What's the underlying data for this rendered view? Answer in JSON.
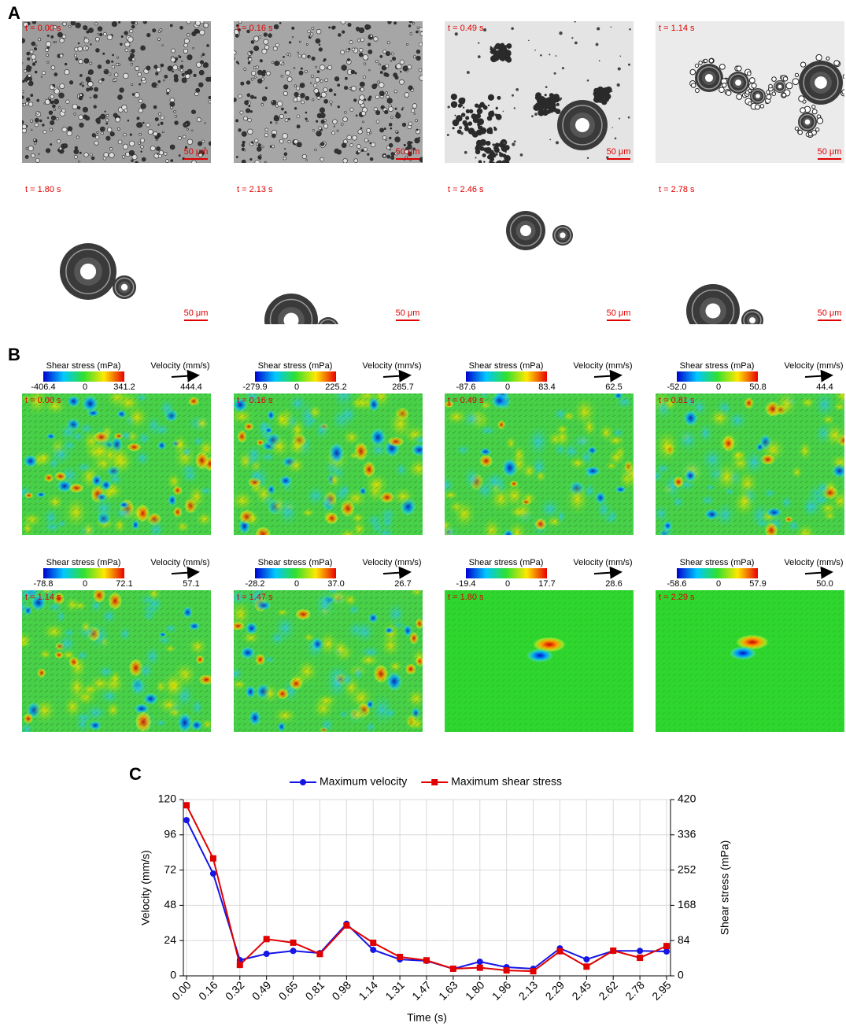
{
  "panel_a": {
    "label": "A",
    "scale_bar": "50 μm",
    "times": [
      "t = 0.00 s",
      "t = 0.16 s",
      "t = 0.49 s",
      "t = 1.14 s",
      "t = 1.80 s",
      "t = 2.13 s",
      "t = 2.46 s",
      "t = 2.78 s"
    ]
  },
  "panel_b": {
    "label": "B",
    "colorbar_title": "Shear stress (mPa)",
    "velocity_title": "Velocity (mm/s)",
    "maps": [
      {
        "time": "t = 0.00 s",
        "min": "-406.4",
        "mid": "0",
        "max": "341.2",
        "velocity": "444.4"
      },
      {
        "time": "t = 0.16 s",
        "min": "-279.9",
        "mid": "0",
        "max": "225.2",
        "velocity": "285.7"
      },
      {
        "time": "t = 0.49 s",
        "min": "-87.6",
        "mid": "0",
        "max": "83.4",
        "velocity": "62.5"
      },
      {
        "time": "t = 0.81 s",
        "min": "-52.0",
        "mid": "0",
        "max": "50.8",
        "velocity": "44.4"
      },
      {
        "time": "t = 1.14 s",
        "min": "-78.8",
        "mid": "0",
        "max": "72.1",
        "velocity": "57.1"
      },
      {
        "time": "t = 1.47 s",
        "min": "-28.2",
        "mid": "0",
        "max": "37.0",
        "velocity": "26.7"
      },
      {
        "time": "t = 1.80 s",
        "min": "-19.4",
        "mid": "0",
        "max": "17.7",
        "velocity": "28.6"
      },
      {
        "time": "t = 2.29 s",
        "min": "-58.6",
        "mid": "0",
        "max": "57.9",
        "velocity": "50.0"
      }
    ]
  },
  "panel_c_label": "C",
  "chart_data": {
    "type": "line",
    "x_label": "Time (s)",
    "y_label": "Velocity (mm/s)",
    "y2_label": "Shear stress (mPa)",
    "categories": [
      "0.00",
      "0.16",
      "0.32",
      "0.49",
      "0.65",
      "0.81",
      "0.98",
      "1.14",
      "1.31",
      "1.47",
      "1.63",
      "1.80",
      "1.96",
      "2.13",
      "2.29",
      "2.45",
      "2.62",
      "2.78",
      "2.95"
    ],
    "series": [
      {
        "name": "Maximum velocity",
        "color": "#1515e6",
        "marker": "circle",
        "values": [
          106,
          69.6,
          10.7,
          15,
          17,
          15.5,
          35.4,
          17.7,
          11.2,
          10.2,
          4.8,
          9.6,
          5.9,
          4.8,
          18.7,
          11.2,
          17,
          17,
          16.6
        ]
      },
      {
        "name": "Maximum shear stress",
        "color": "#e00000",
        "marker": "square",
        "axis": "y2",
        "values": [
          406.4,
          279.9,
          26,
          87.6,
          79,
          52.0,
          120,
          78.8,
          45,
          37.0,
          17,
          19.4,
          13,
          11,
          58.6,
          22,
          60,
          43,
          71
        ]
      }
    ],
    "ylim": [
      0,
      120
    ],
    "yticks": [
      0,
      24,
      48,
      72,
      96,
      120
    ],
    "y2lim": [
      0,
      420
    ],
    "y2ticks": [
      0,
      84,
      168,
      252,
      336,
      420
    ],
    "grid": true,
    "legend": "top"
  }
}
